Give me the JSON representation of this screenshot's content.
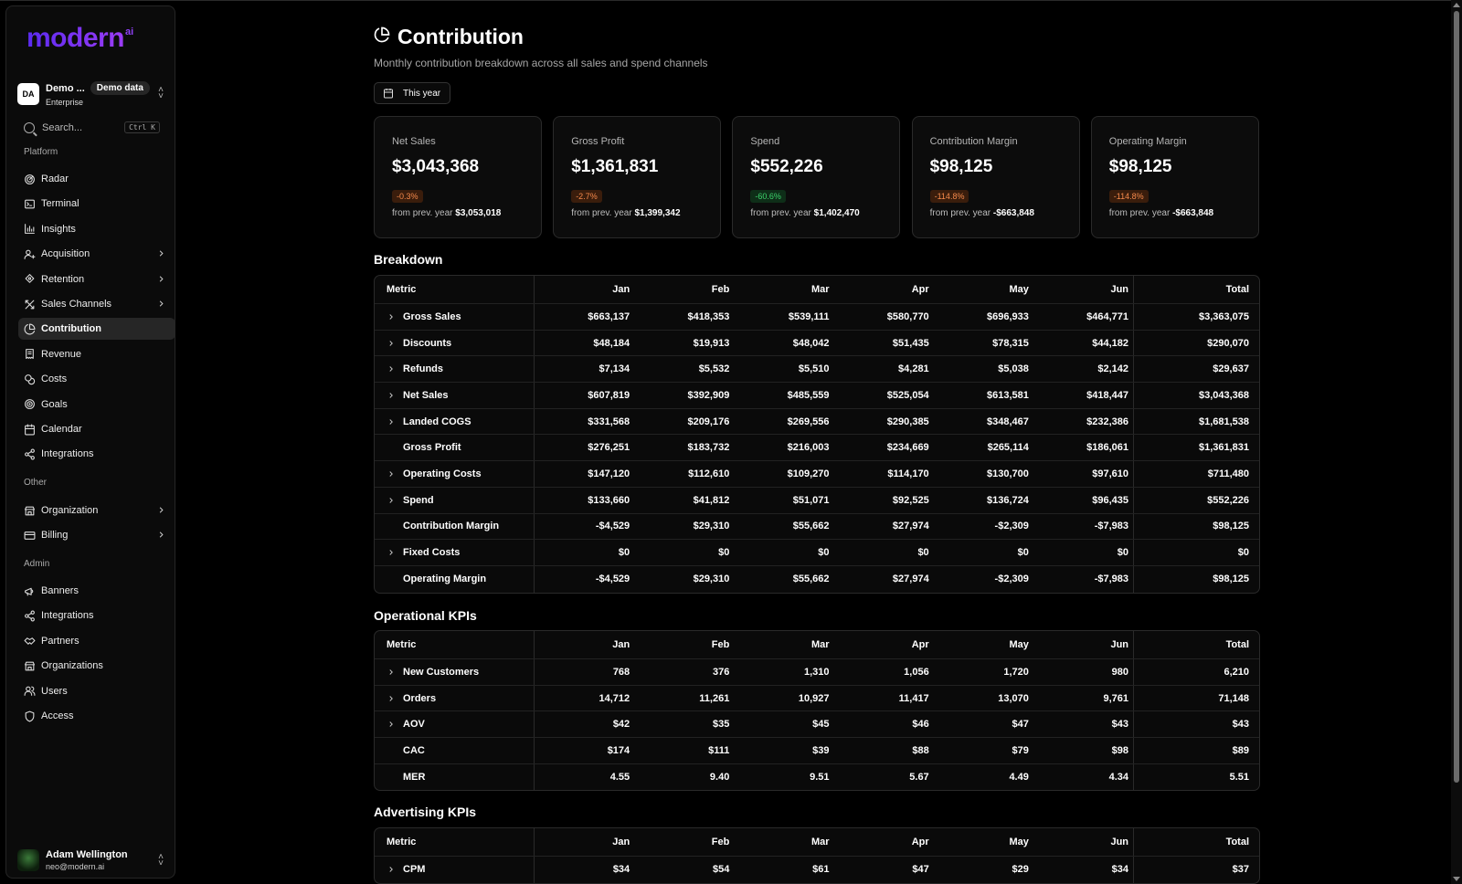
{
  "brand": {
    "name": "modern",
    "suffix": "ai"
  },
  "org": {
    "avatar": "DA",
    "name": "Demo ...",
    "badge": "Demo data",
    "plan": "Enterprise"
  },
  "search": {
    "placeholder": "Search...",
    "shortcut": "Ctrl K"
  },
  "sidebar": {
    "platform_label": "Platform",
    "platform": [
      {
        "label": "Radar",
        "icon": "radar-icon"
      },
      {
        "label": "Terminal",
        "icon": "terminal-icon"
      },
      {
        "label": "Insights",
        "icon": "bar-chart-icon"
      },
      {
        "label": "Acquisition",
        "icon": "user-plus-icon",
        "expandable": true
      },
      {
        "label": "Retention",
        "icon": "retention-icon",
        "expandable": true
      },
      {
        "label": "Sales Channels",
        "icon": "channels-icon",
        "expandable": true
      },
      {
        "label": "Contribution",
        "icon": "pie-chart-icon",
        "active": true
      },
      {
        "label": "Revenue",
        "icon": "receipt-icon"
      },
      {
        "label": "Costs",
        "icon": "coins-icon"
      },
      {
        "label": "Goals",
        "icon": "goal-icon"
      },
      {
        "label": "Calendar",
        "icon": "calendar-icon"
      },
      {
        "label": "Integrations",
        "icon": "share-icon"
      }
    ],
    "other_label": "Other",
    "other": [
      {
        "label": "Organization",
        "icon": "store-icon",
        "expandable": true
      },
      {
        "label": "Billing",
        "icon": "credit-card-icon",
        "expandable": true
      }
    ],
    "admin_label": "Admin",
    "admin": [
      {
        "label": "Banners",
        "icon": "megaphone-icon"
      },
      {
        "label": "Integrations",
        "icon": "share-icon"
      },
      {
        "label": "Partners",
        "icon": "handshake-icon"
      },
      {
        "label": "Organizations",
        "icon": "store-icon"
      },
      {
        "label": "Users",
        "icon": "users-icon"
      },
      {
        "label": "Access",
        "icon": "shield-icon"
      }
    ]
  },
  "user": {
    "name": "Adam Wellington",
    "email": "neo@modern.ai"
  },
  "page": {
    "title": "Contribution",
    "subtitle": "Monthly contribution breakdown across all sales and spend channels",
    "date_range": "This year"
  },
  "cards": [
    {
      "label": "Net Sales",
      "value": "$3,043,368",
      "delta": "-0.3%",
      "delta_type": "negative",
      "prev_label": "from prev. year",
      "prev_value": "$3,053,018"
    },
    {
      "label": "Gross Profit",
      "value": "$1,361,831",
      "delta": "-2.7%",
      "delta_type": "negative",
      "prev_label": "from prev. year",
      "prev_value": "$1,399,342"
    },
    {
      "label": "Spend",
      "value": "$552,226",
      "delta": "-60.6%",
      "delta_type": "positive",
      "prev_label": "from prev. year",
      "prev_value": "$1,402,470"
    },
    {
      "label": "Contribution Margin",
      "value": "$98,125",
      "delta": "-114.8%",
      "delta_type": "negative",
      "prev_label": "from prev. year",
      "prev_value": "-$663,848"
    },
    {
      "label": "Operating Margin",
      "value": "$98,125",
      "delta": "-114.8%",
      "delta_type": "negative",
      "prev_label": "from prev. year",
      "prev_value": "-$663,848"
    }
  ],
  "breakdown": {
    "title": "Breakdown",
    "headers": [
      "Metric",
      "Jan",
      "Feb",
      "Mar",
      "Apr",
      "May",
      "Jun",
      "Total"
    ],
    "rows": [
      {
        "metric": "Gross Sales",
        "expandable": true,
        "values": [
          "$663,137",
          "$418,353",
          "$539,111",
          "$580,770",
          "$696,933",
          "$464,771"
        ],
        "total": "$3,363,075"
      },
      {
        "metric": "Discounts",
        "expandable": true,
        "values": [
          "$48,184",
          "$19,913",
          "$48,042",
          "$51,435",
          "$78,315",
          "$44,182"
        ],
        "total": "$290,070"
      },
      {
        "metric": "Refunds",
        "expandable": true,
        "values": [
          "$7,134",
          "$5,532",
          "$5,510",
          "$4,281",
          "$5,038",
          "$2,142"
        ],
        "total": "$29,637"
      },
      {
        "metric": "Net Sales",
        "expandable": true,
        "values": [
          "$607,819",
          "$392,909",
          "$485,559",
          "$525,054",
          "$613,581",
          "$418,447"
        ],
        "total": "$3,043,368"
      },
      {
        "metric": "Landed COGS",
        "expandable": true,
        "values": [
          "$331,568",
          "$209,176",
          "$269,556",
          "$290,385",
          "$348,467",
          "$232,386"
        ],
        "total": "$1,681,538"
      },
      {
        "metric": "Gross Profit",
        "expandable": false,
        "values": [
          "$276,251",
          "$183,732",
          "$216,003",
          "$234,669",
          "$265,114",
          "$186,061"
        ],
        "total": "$1,361,831"
      },
      {
        "metric": "Operating Costs",
        "expandable": true,
        "values": [
          "$147,120",
          "$112,610",
          "$109,270",
          "$114,170",
          "$130,700",
          "$97,610"
        ],
        "total": "$711,480"
      },
      {
        "metric": "Spend",
        "expandable": true,
        "values": [
          "$133,660",
          "$41,812",
          "$51,071",
          "$92,525",
          "$136,724",
          "$96,435"
        ],
        "total": "$552,226"
      },
      {
        "metric": "Contribution Margin",
        "expandable": false,
        "values": [
          "-$4,529",
          "$29,310",
          "$55,662",
          "$27,974",
          "-$2,309",
          "-$7,983"
        ],
        "total": "$98,125"
      },
      {
        "metric": "Fixed Costs",
        "expandable": true,
        "values": [
          "$0",
          "$0",
          "$0",
          "$0",
          "$0",
          "$0"
        ],
        "total": "$0"
      },
      {
        "metric": "Operating Margin",
        "expandable": false,
        "values": [
          "-$4,529",
          "$29,310",
          "$55,662",
          "$27,974",
          "-$2,309",
          "-$7,983"
        ],
        "total": "$98,125"
      }
    ]
  },
  "operational": {
    "title": "Operational KPIs",
    "headers": [
      "Metric",
      "Jan",
      "Feb",
      "Mar",
      "Apr",
      "May",
      "Jun",
      "Total"
    ],
    "rows": [
      {
        "metric": "New Customers",
        "expandable": true,
        "values": [
          "768",
          "376",
          "1,310",
          "1,056",
          "1,720",
          "980"
        ],
        "total": "6,210"
      },
      {
        "metric": "Orders",
        "expandable": true,
        "values": [
          "14,712",
          "11,261",
          "10,927",
          "11,417",
          "13,070",
          "9,761"
        ],
        "total": "71,148"
      },
      {
        "metric": "AOV",
        "expandable": true,
        "values": [
          "$42",
          "$35",
          "$45",
          "$46",
          "$47",
          "$43"
        ],
        "total": "$43"
      },
      {
        "metric": "CAC",
        "expandable": false,
        "values": [
          "$174",
          "$111",
          "$39",
          "$88",
          "$79",
          "$98"
        ],
        "total": "$89"
      },
      {
        "metric": "MER",
        "expandable": false,
        "values": [
          "4.55",
          "9.40",
          "9.51",
          "5.67",
          "4.49",
          "4.34"
        ],
        "total": "5.51"
      }
    ]
  },
  "advertising": {
    "title": "Advertising KPIs",
    "headers": [
      "Metric",
      "Jan",
      "Feb",
      "Mar",
      "Apr",
      "May",
      "Jun",
      "Total"
    ],
    "rows": [
      {
        "metric": "CPM",
        "expandable": true,
        "values": [
          "$34",
          "$54",
          "$61",
          "$47",
          "$29",
          "$34"
        ],
        "total": "$37"
      }
    ]
  },
  "colors": {
    "accent_start": "#5b2bf0",
    "accent_end": "#9b3cf5",
    "negative": "#f4894b",
    "positive": "#3cd26b"
  }
}
